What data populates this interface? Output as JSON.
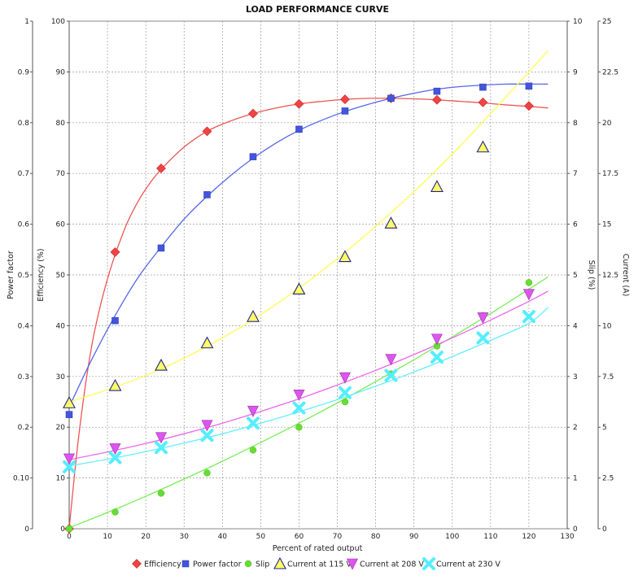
{
  "chart_data": {
    "type": "scatter",
    "title": "LOAD PERFORMANCE CURVE",
    "xlabel": "Percent of rated output",
    "xlim": [
      0,
      130
    ],
    "xticks": [
      0,
      10,
      20,
      30,
      40,
      50,
      60,
      70,
      80,
      90,
      100,
      110,
      120,
      130
    ],
    "grid": true,
    "legend_position": "bottom",
    "axes": [
      {
        "id": "pf",
        "label": "Power factor",
        "side": "left",
        "range": [
          0,
          1
        ],
        "ticks": [
          "0",
          "0.10",
          "0.2",
          "0.3",
          "0.4",
          "0.5",
          "0.6",
          "0.7",
          "0.8",
          "0.9",
          "1"
        ]
      },
      {
        "id": "eff",
        "label": "Efficiency (%)",
        "side": "left",
        "range": [
          0,
          100
        ],
        "ticks": [
          "0",
          "10",
          "20",
          "30",
          "40",
          "50",
          "60",
          "70",
          "80",
          "90",
          "100"
        ]
      },
      {
        "id": "slip",
        "label": "Slip (%)",
        "side": "right",
        "range": [
          0,
          10
        ],
        "ticks": [
          "0",
          "1",
          "2",
          "3",
          "4",
          "5",
          "6",
          "7",
          "8",
          "9",
          "10"
        ]
      },
      {
        "id": "cur",
        "label": "Current (A)",
        "side": "right",
        "range": [
          0,
          25
        ],
        "ticks": [
          "0",
          "2.5",
          "5",
          "7.5",
          "10",
          "12.5",
          "15",
          "17.5",
          "20",
          "22.5",
          "25"
        ]
      }
    ],
    "series": [
      {
        "name": "Efficiency",
        "axis": "eff",
        "color": "#ee4444",
        "marker": "diamond",
        "x": [
          0,
          12,
          24,
          36,
          48,
          60,
          72,
          84,
          96,
          108,
          120
        ],
        "y": [
          0,
          54.5,
          71,
          78.3,
          81.8,
          83.7,
          84.6,
          84.8,
          84.5,
          84,
          83.3
        ],
        "fit_x": [
          0,
          2,
          4,
          6,
          8,
          10,
          12,
          15,
          18,
          21,
          24,
          30,
          36,
          42,
          48,
          54,
          60,
          66,
          72,
          78,
          84,
          90,
          96,
          102,
          108,
          114,
          120,
          125
        ],
        "fit_y": [
          0,
          15,
          27,
          36.5,
          43.5,
          49.2,
          54,
          60,
          64.5,
          68,
          70.8,
          75.2,
          78.3,
          80.3,
          81.8,
          82.9,
          83.7,
          84.2,
          84.6,
          84.8,
          84.8,
          84.7,
          84.5,
          84.2,
          83.9,
          83.5,
          83.2,
          82.9
        ]
      },
      {
        "name": "Power factor",
        "axis": "pf",
        "color": "#4455dd",
        "marker": "square",
        "x": [
          0,
          12,
          24,
          36,
          48,
          60,
          72,
          84,
          96,
          108,
          120
        ],
        "y": [
          0.225,
          0.41,
          0.553,
          0.658,
          0.733,
          0.787,
          0.823,
          0.848,
          0.862,
          0.87,
          0.872
        ],
        "fit_x": [
          0,
          6,
          12,
          18,
          24,
          30,
          36,
          42,
          48,
          54,
          60,
          66,
          72,
          78,
          84,
          90,
          96,
          102,
          108,
          114,
          120,
          125
        ],
        "fit_y": [
          0.24,
          0.335,
          0.42,
          0.495,
          0.555,
          0.61,
          0.655,
          0.695,
          0.73,
          0.76,
          0.785,
          0.805,
          0.822,
          0.836,
          0.848,
          0.858,
          0.866,
          0.871,
          0.874,
          0.876,
          0.876,
          0.876
        ]
      },
      {
        "name": "Slip",
        "axis": "slip",
        "color": "#66dd33",
        "marker": "circle",
        "x": [
          0,
          12,
          24,
          36,
          48,
          60,
          72,
          84,
          96,
          108,
          120
        ],
        "y": [
          0,
          0.33,
          0.7,
          1.1,
          1.55,
          2.0,
          2.5,
          3.05,
          3.6,
          4.2,
          4.85
        ],
        "fit_x": [
          0,
          10,
          20,
          30,
          40,
          50,
          60,
          70,
          80,
          90,
          100,
          110,
          120,
          125
        ],
        "fit_y": [
          0.02,
          0.32,
          0.64,
          0.98,
          1.33,
          1.7,
          2.08,
          2.48,
          2.9,
          3.33,
          3.78,
          4.24,
          4.72,
          4.96
        ]
      },
      {
        "name": "Current at 115 V",
        "axis": "cur",
        "color": "#ffff66",
        "marker": "triangle",
        "x": [
          0,
          12,
          24,
          36,
          48,
          60,
          72,
          84,
          96,
          108
        ],
        "y": [
          6.2,
          7.05,
          8.05,
          9.15,
          10.45,
          11.8,
          13.4,
          15.05,
          16.85,
          18.8
        ],
        "fit_x": [
          0,
          10,
          20,
          30,
          40,
          50,
          60,
          70,
          80,
          90,
          100,
          110,
          120,
          125
        ],
        "fit_y": [
          6.25,
          6.85,
          7.55,
          8.4,
          9.4,
          10.55,
          11.85,
          13.3,
          14.9,
          16.6,
          18.45,
          20.45,
          22.5,
          23.55
        ]
      },
      {
        "name": "Current at 208 V",
        "axis": "cur",
        "color": "#dd55ee",
        "marker": "inv-triangle",
        "x": [
          0,
          12,
          24,
          36,
          48,
          60,
          72,
          84,
          96,
          108,
          120
        ],
        "y": [
          3.45,
          3.95,
          4.5,
          5.1,
          5.8,
          6.6,
          7.45,
          8.35,
          9.35,
          10.4,
          11.55
        ],
        "fit_x": [
          0,
          10,
          20,
          30,
          40,
          50,
          60,
          70,
          80,
          90,
          100,
          110,
          120,
          125
        ],
        "fit_y": [
          3.4,
          3.78,
          4.2,
          4.68,
          5.2,
          5.78,
          6.4,
          7.08,
          7.8,
          8.58,
          9.4,
          10.28,
          11.2,
          11.7
        ]
      },
      {
        "name": "Current at 230 V",
        "axis": "cur",
        "color": "#55eeff",
        "marker": "x",
        "x": [
          0,
          12,
          24,
          36,
          48,
          60,
          72,
          84,
          96,
          108,
          120
        ],
        "y": [
          3.05,
          3.5,
          4.0,
          4.6,
          5.2,
          5.95,
          6.7,
          7.55,
          8.45,
          9.4,
          10.45
        ],
        "fit_x": [
          0,
          10,
          20,
          30,
          40,
          50,
          60,
          70,
          80,
          90,
          100,
          110,
          120,
          125
        ],
        "fit_y": [
          3.1,
          3.42,
          3.8,
          4.22,
          4.68,
          5.2,
          5.76,
          6.36,
          7.02,
          7.72,
          8.48,
          9.28,
          10.12,
          10.9
        ]
      }
    ]
  }
}
